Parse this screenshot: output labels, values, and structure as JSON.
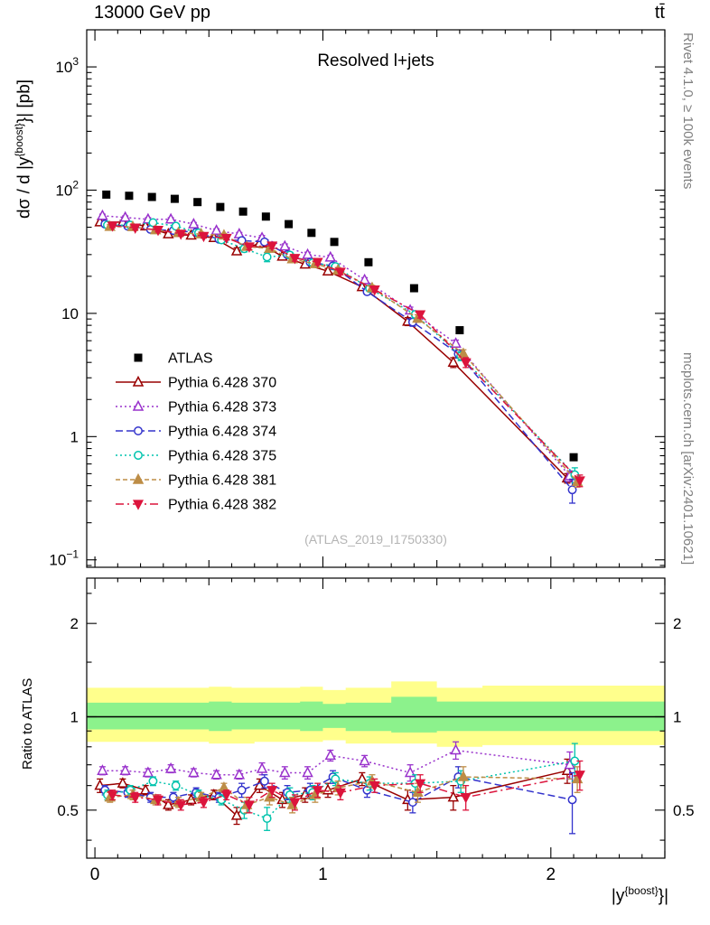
{
  "header": {
    "title_left": "13000 GeV pp",
    "title_right": "tt̄"
  },
  "panel": {
    "title": "Resolved l+jets",
    "watermark": "(ATLAS_2019_I1750330)"
  },
  "side_labels": {
    "right_top": "Rivet 4.1.0, ≥ 100k events",
    "right_bottom": "mcplots.cern.ch [arXiv:2401.10621]"
  },
  "axes": {
    "y_label": {
      "prefix": "dσ / d |y",
      "sup": "{boost}",
      "suffix": "}| [pb]"
    },
    "x_label": {
      "prefix": "|y",
      "sup": "{boost}",
      "suffix": "}|"
    },
    "ratio_label": "Ratio to ATLAS"
  },
  "chart_data": {
    "type": "line",
    "title": "Resolved l+jets",
    "xlabel": "|y^{boost}|",
    "ylabel": "dσ / d |y^{boost}| [pb]",
    "main_axis": {
      "scale": "log",
      "xmin": -0.036,
      "xmax": 2.5,
      "ymin": 0.087,
      "ymax": 2000,
      "tick_decades": [
        -1,
        0,
        1,
        2,
        3
      ]
    },
    "ratio_axis": {
      "scale": "log",
      "ymin": 0.35,
      "ymax": 2.8,
      "ticks": [
        0.5,
        1,
        2
      ],
      "minor_ticks": [
        0.4,
        0.6,
        0.7,
        0.8,
        0.9,
        1.5,
        2.5
      ]
    },
    "x_ticks_labeled": [
      0,
      1,
      2
    ],
    "x": [
      0.05,
      0.15,
      0.25,
      0.35,
      0.45,
      0.55,
      0.65,
      0.75,
      0.85,
      0.95,
      1.05,
      1.2,
      1.4,
      1.6,
      2.1
    ],
    "bin_edges": [
      0,
      0.1,
      0.2,
      0.3,
      0.4,
      0.5,
      0.6,
      0.7,
      0.8,
      0.9,
      1.0,
      1.1,
      1.3,
      1.5,
      1.7,
      2.5
    ],
    "atlas": {
      "name": "ATLAS",
      "color": "#000000",
      "marker": "square-filled",
      "y": [
        92,
        90,
        88,
        85,
        80,
        73,
        67,
        61,
        53,
        45,
        38,
        26,
        16,
        7.3,
        0.68
      ],
      "err": [
        3,
        3,
        3,
        3,
        2.8,
        2.6,
        2.4,
        2.2,
        2,
        1.7,
        1.4,
        1,
        0.6,
        0.3,
        0.04
      ]
    },
    "series": [
      {
        "name": "Pythia 6.428 370",
        "color": "#990000",
        "line": "solid",
        "marker": "triangle-up-open",
        "dx": -0.028,
        "y": [
          55,
          55,
          51,
          44,
          43,
          41,
          32,
          37,
          29,
          25,
          22,
          16.4,
          8.6,
          4.0,
          0.46
        ],
        "ratio": [
          0.6,
          0.61,
          0.58,
          0.52,
          0.54,
          0.56,
          0.48,
          0.6,
          0.54,
          0.56,
          0.58,
          0.63,
          0.54,
          0.55,
          0.67
        ],
        "ratio_err": [
          0.03,
          0.02,
          0.02,
          0.02,
          0.02,
          0.02,
          0.03,
          0.03,
          0.03,
          0.03,
          0.03,
          0.03,
          0.04,
          0.05,
          0.06
        ]
      },
      {
        "name": "Pythia 6.428 373",
        "color": "#9932cc",
        "line": "dotted",
        "marker": "triangle-up-open",
        "dx": -0.017,
        "y": [
          62,
          60,
          58,
          58,
          53,
          47,
          44,
          41,
          35,
          30,
          28.5,
          18.7,
          10.6,
          5.7,
          0.48
        ],
        "ratio": [
          0.67,
          0.67,
          0.66,
          0.68,
          0.66,
          0.65,
          0.65,
          0.68,
          0.66,
          0.66,
          0.75,
          0.72,
          0.66,
          0.78,
          0.7
        ],
        "ratio_err": [
          0.02,
          0.02,
          0.02,
          0.02,
          0.02,
          0.02,
          0.02,
          0.03,
          0.03,
          0.03,
          0.03,
          0.03,
          0.04,
          0.05,
          0.07
        ]
      },
      {
        "name": "Pythia 6.428 374",
        "color": "#3333cc",
        "line": "dashed",
        "marker": "circle-open",
        "dx": -0.006,
        "y": [
          53,
          51,
          48,
          47,
          45.5,
          40,
          39,
          38,
          30,
          26,
          24.3,
          15,
          8.5,
          4.7,
          0.37
        ],
        "ratio": [
          0.58,
          0.57,
          0.55,
          0.55,
          0.57,
          0.55,
          0.58,
          0.62,
          0.57,
          0.58,
          0.64,
          0.58,
          0.53,
          0.64,
          0.54
        ],
        "ratio_err": [
          0.02,
          0.02,
          0.02,
          0.02,
          0.02,
          0.02,
          0.03,
          0.03,
          0.03,
          0.03,
          0.03,
          0.03,
          0.04,
          0.05,
          0.12
        ]
      },
      {
        "name": "Pythia 6.428 375",
        "color": "#00c3ad",
        "line": "dotted",
        "marker": "circle-open",
        "dx": 0.005,
        "y": [
          52,
          52,
          54.5,
          51,
          45,
          39.5,
          33.5,
          28.7,
          29.7,
          25.7,
          24,
          15.9,
          9.8,
          4.5,
          0.49
        ],
        "ratio": [
          0.56,
          0.58,
          0.62,
          0.6,
          0.56,
          0.54,
          0.5,
          0.47,
          0.56,
          0.57,
          0.63,
          0.61,
          0.61,
          0.62,
          0.72
        ],
        "ratio_err": [
          0.02,
          0.02,
          0.02,
          0.02,
          0.02,
          0.02,
          0.03,
          0.04,
          0.03,
          0.03,
          0.03,
          0.03,
          0.04,
          0.05,
          0.1
        ]
      },
      {
        "name": "Pythia 6.428 381",
        "color": "#bd8d46",
        "line": "shortdash",
        "marker": "triangle-up-filled",
        "dx": 0.016,
        "y": [
          50.6,
          50.4,
          47.5,
          45,
          44,
          43,
          34.8,
          33.6,
          27.6,
          25.2,
          22.4,
          16.1,
          9.1,
          4.7,
          0.43
        ],
        "ratio": [
          0.55,
          0.56,
          0.54,
          0.53,
          0.55,
          0.59,
          0.52,
          0.55,
          0.52,
          0.56,
          0.59,
          0.62,
          0.57,
          0.64,
          0.63
        ],
        "ratio_err": [
          0.02,
          0.02,
          0.02,
          0.02,
          0.02,
          0.02,
          0.03,
          0.03,
          0.03,
          0.03,
          0.03,
          0.03,
          0.04,
          0.05,
          0.06
        ]
      },
      {
        "name": "Pythia 6.428 382",
        "color": "#dc143c",
        "line": "dashdot",
        "marker": "triangle-down-filled",
        "dx": 0.027,
        "y": [
          51.5,
          49.5,
          47.5,
          44.2,
          42.4,
          40.9,
          34.8,
          35.4,
          28.1,
          26.1,
          21.7,
          15.6,
          9.8,
          4.0,
          0.44
        ],
        "ratio": [
          0.56,
          0.55,
          0.54,
          0.52,
          0.53,
          0.56,
          0.52,
          0.58,
          0.53,
          0.58,
          0.57,
          0.6,
          0.61,
          0.55,
          0.65
        ],
        "ratio_err": [
          0.02,
          0.02,
          0.02,
          0.02,
          0.02,
          0.02,
          0.03,
          0.03,
          0.03,
          0.03,
          0.03,
          0.03,
          0.04,
          0.05,
          0.07
        ]
      }
    ],
    "bands": {
      "yellow": {
        "color": "#ffff8c",
        "low": [
          0.83,
          0.83,
          0.83,
          0.83,
          0.83,
          0.82,
          0.82,
          0.83,
          0.83,
          0.83,
          0.84,
          0.82,
          0.82,
          0.8,
          0.81
        ],
        "high": [
          1.24,
          1.24,
          1.24,
          1.24,
          1.24,
          1.25,
          1.24,
          1.24,
          1.24,
          1.25,
          1.22,
          1.24,
          1.3,
          1.24,
          1.26
        ]
      },
      "green": {
        "color": "#8cf28c",
        "low": [
          0.91,
          0.91,
          0.91,
          0.91,
          0.91,
          0.9,
          0.91,
          0.91,
          0.91,
          0.9,
          0.92,
          0.9,
          0.89,
          0.9,
          0.9
        ],
        "high": [
          1.11,
          1.11,
          1.11,
          1.11,
          1.11,
          1.12,
          1.11,
          1.11,
          1.11,
          1.12,
          1.1,
          1.11,
          1.16,
          1.12,
          1.12
        ]
      }
    },
    "legend_position": "middle-left",
    "grid": false
  }
}
